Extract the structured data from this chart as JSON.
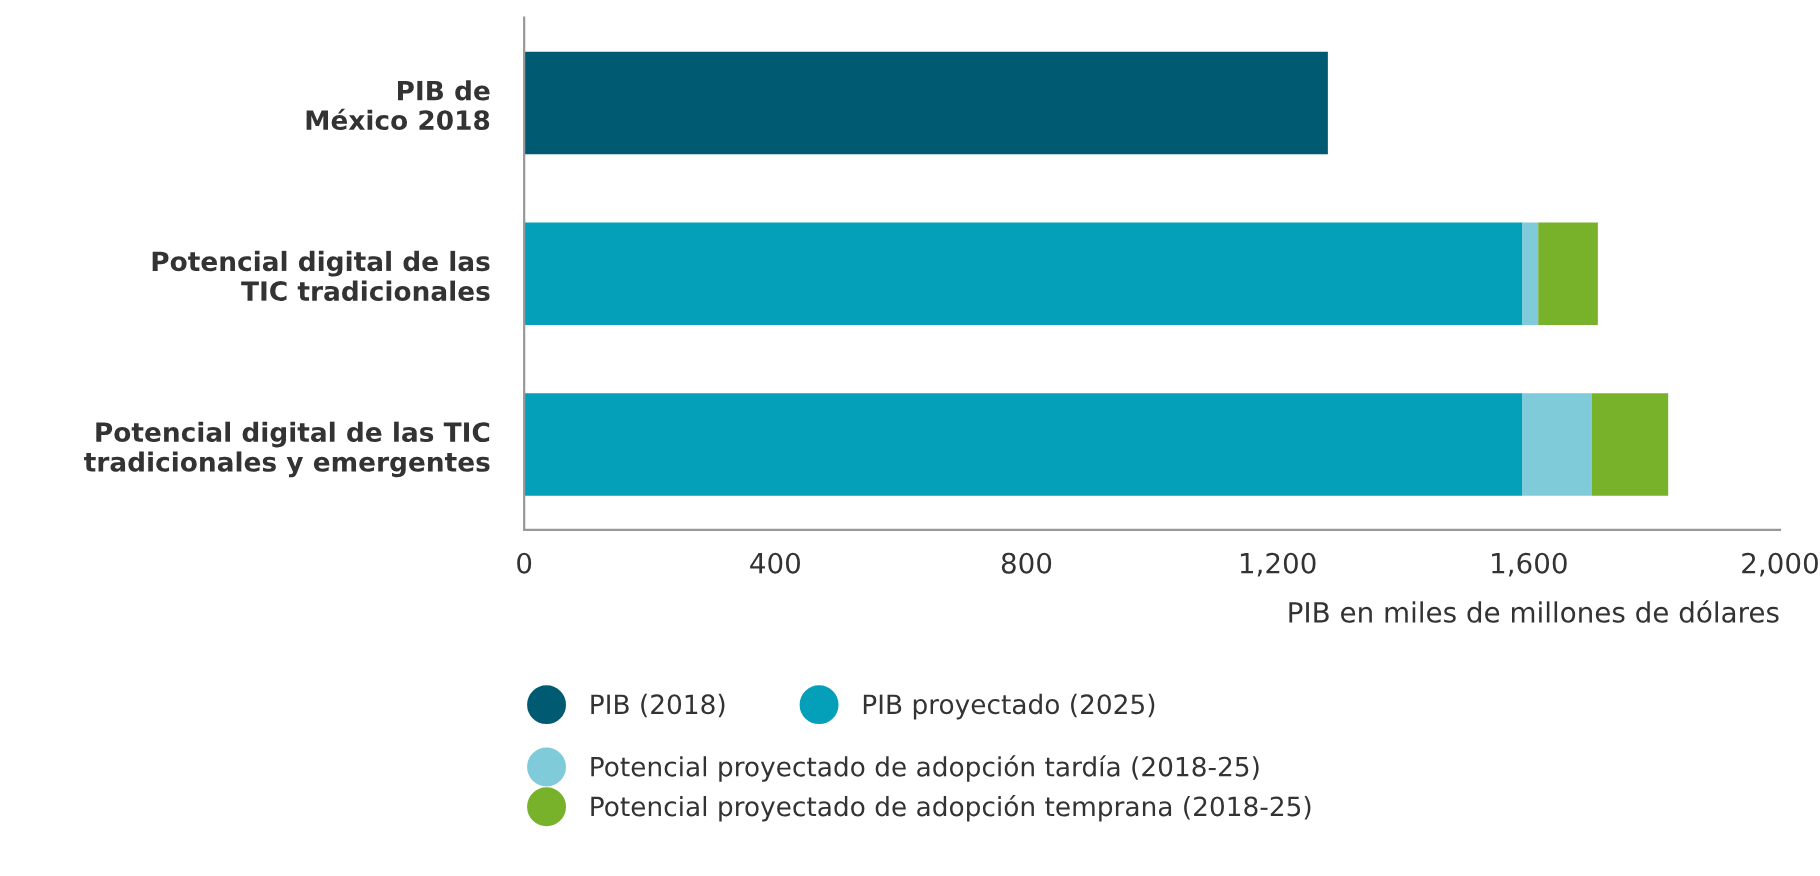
{
  "chart_data": {
    "type": "bar",
    "orientation": "horizontal",
    "stacked": true,
    "categories": [
      "PIB de\nMéxico 2018",
      "Potencial digital de las\nTIC tradicionales",
      "Potencial digital de las TIC\ntradicionales y emergentes"
    ],
    "series": [
      {
        "name": "PIB (2018)",
        "color": "#005a72",
        "values": [
          1280,
          null,
          null
        ]
      },
      {
        "name": "PIB proyectado (2025)",
        "color": "#049fb8",
        "values": [
          null,
          1590,
          1590
        ]
      },
      {
        "name": "Potencial proyectado de adopción tardía (2018-25)",
        "color": "#7fcbd9",
        "values": [
          null,
          25,
          110
        ]
      },
      {
        "name": "Potencial proyectado de adopción temprana (2018-25)",
        "color": "#78b12a",
        "values": [
          null,
          95,
          122
        ]
      }
    ],
    "xlim": [
      0,
      2000
    ],
    "xticks": [
      0,
      400,
      800,
      {
        "value": 1200,
        "label": "1,200"
      },
      {
        "value": 1600,
        "label": "1,600"
      },
      {
        "value": 2000,
        "label": "2,000"
      }
    ],
    "xlabel": "PIB en miles de millones de dólares",
    "grid": false,
    "legend": "bottom left"
  }
}
